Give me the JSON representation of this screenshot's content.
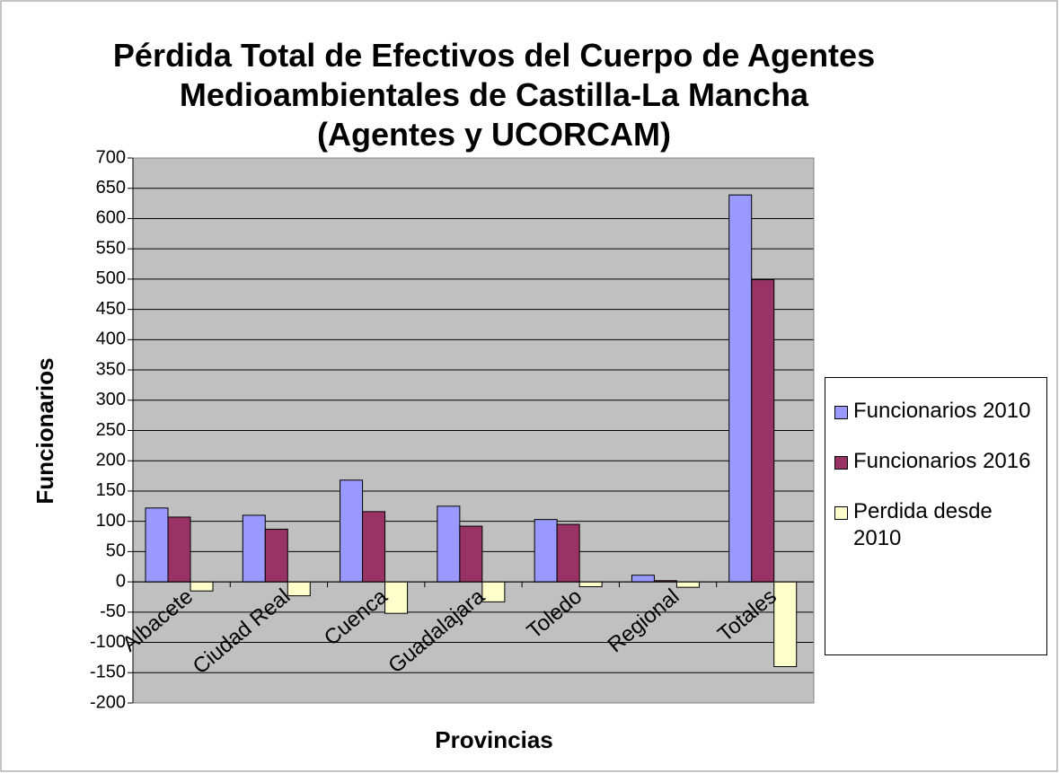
{
  "chart_data": {
    "type": "bar",
    "title": "Pérdida Total de Efectivos del Cuerpo de Agentes Medioambientales de Castilla-La Mancha (Agentes y UCORCAM)",
    "x_label": "Provincias",
    "y_label": "Funcionarios",
    "categories": [
      "Albacete",
      "Ciudad Real",
      "Cuenca",
      "Guadalajara",
      "Toledo",
      "Regional",
      "Totales"
    ],
    "series": [
      {
        "name": "Funcionarios 2010",
        "color": "#9999ff",
        "values": [
          122,
          110,
          168,
          125,
          103,
          11,
          639
        ]
      },
      {
        "name": "Funcionarios 2016",
        "color": "#993366",
        "values": [
          107,
          87,
          116,
          92,
          95,
          2,
          499
        ]
      },
      {
        "name": "Perdida desde 2010",
        "color": "#ffffcc",
        "values": [
          -15,
          -23,
          -52,
          -33,
          -8,
          -9,
          -140
        ]
      }
    ],
    "ylim": [
      -200,
      700
    ],
    "yticks": [
      -200,
      -150,
      -100,
      -50,
      0,
      50,
      100,
      150,
      200,
      250,
      300,
      350,
      400,
      450,
      500,
      550,
      600,
      650,
      700
    ],
    "grid": true,
    "legend": "right"
  }
}
